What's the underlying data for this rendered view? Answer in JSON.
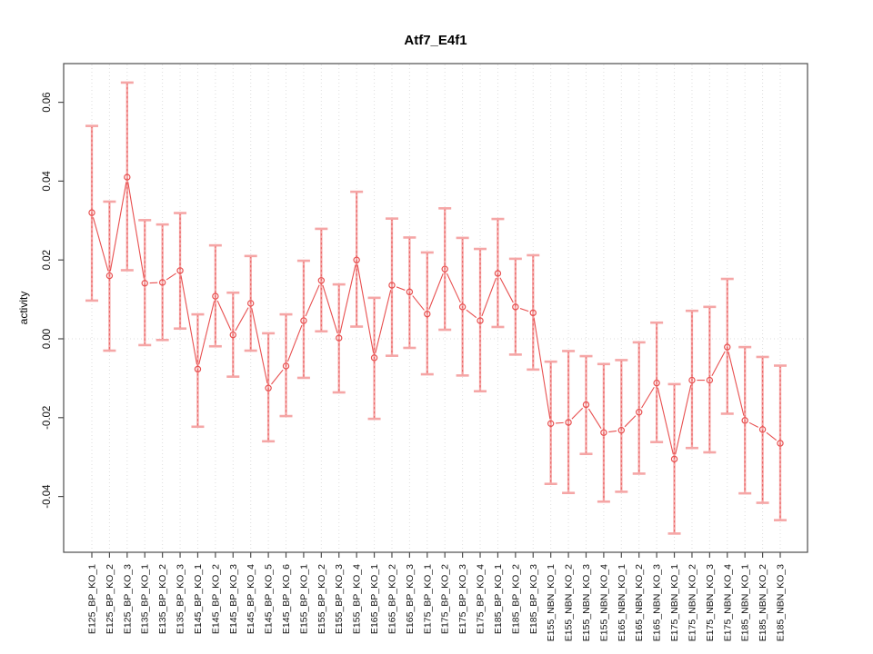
{
  "title": "Atf7_E4f1",
  "colors": {
    "series": "#e85050",
    "error_bar_light": "#f5a6a6",
    "error_bar_core": "#ea6565",
    "grid": "#dedede",
    "axis": "#4d4d4d",
    "text": "#111111"
  },
  "chart_data": {
    "type": "line",
    "subtype": "points-with-error-bars",
    "title": "Atf7_E4f1",
    "xlabel": "",
    "ylabel": "activity",
    "ylim": [
      -0.054,
      0.07
    ],
    "yticks": [
      0.06,
      0.04,
      0.02,
      0.0,
      -0.02,
      -0.04
    ],
    "yticklabels": [
      "0.06",
      "0.04",
      "0.02",
      "0.00",
      "-0.02",
      "-0.04"
    ],
    "grid": "vertical dotted gridline at every category; dotted horizontal line at y=0",
    "legend_position": "none",
    "categories": [
      "E125_BP_KO_1",
      "E125_BP_KO_2",
      "E125_BP_KO_3",
      "E135_BP_KO_1",
      "E135_BP_KO_2",
      "E135_BP_KO_3",
      "E145_BP_KO_1",
      "E145_BP_KO_2",
      "E145_BP_KO_3",
      "E145_BP_KO_4",
      "E145_BP_KO_5",
      "E145_BP_KO_6",
      "E155_BP_KO_1",
      "E155_BP_KO_2",
      "E155_BP_KO_3",
      "E155_BP_KO_4",
      "E165_BP_KO_1",
      "E165_BP_KO_2",
      "E165_BP_KO_3",
      "E175_BP_KO_1",
      "E175_BP_KO_2",
      "E175_BP_KO_3",
      "E175_BP_KO_4",
      "E185_BP_KO_1",
      "E185_BP_KO_2",
      "E185_BP_KO_3",
      "E155_NBN_KO_1",
      "E155_NBN_KO_2",
      "E155_NBN_KO_3",
      "E155_NBN_KO_4",
      "E165_NBN_KO_1",
      "E165_NBN_KO_2",
      "E165_NBN_KO_3",
      "E175_NBN_KO_1",
      "E175_NBN_KO_2",
      "E175_NBN_KO_3",
      "E175_NBN_KO_4",
      "E185_NBN_KO_1",
      "E185_NBN_KO_2",
      "E185_NBN_KO_3"
    ],
    "series": [
      {
        "name": "activity",
        "values": [
          0.032,
          0.016,
          0.041,
          0.0141,
          0.0143,
          0.0173,
          -0.0077,
          0.0108,
          0.001,
          0.009,
          -0.0125,
          -0.0069,
          0.0046,
          0.0148,
          0.0002,
          0.02,
          -0.0048,
          0.0136,
          0.0119,
          0.0063,
          0.0177,
          0.0081,
          0.0046,
          0.0166,
          0.0081,
          0.0066,
          -0.0215,
          -0.0212,
          -0.0167,
          -0.0238,
          -0.0232,
          -0.0186,
          -0.0112,
          -0.0305,
          -0.0105,
          -0.0105,
          -0.0021,
          -0.0207,
          -0.023,
          -0.0265
        ],
        "ci_low": [
          0.0097,
          -0.003,
          0.0174,
          -0.0016,
          -0.0003,
          0.0026,
          -0.0223,
          -0.0019,
          -0.0096,
          -0.003,
          -0.026,
          -0.0196,
          -0.0099,
          0.0019,
          -0.0136,
          0.0031,
          -0.0203,
          -0.0043,
          -0.0023,
          -0.009,
          0.0023,
          -0.0093,
          -0.0133,
          0.003,
          -0.004,
          -0.0078,
          -0.0368,
          -0.0391,
          -0.0292,
          -0.0413,
          -0.0388,
          -0.0342,
          -0.0262,
          -0.0494,
          -0.0277,
          -0.0288,
          -0.019,
          -0.0392,
          -0.0416,
          -0.046
        ],
        "ci_high": [
          0.054,
          0.0348,
          0.065,
          0.0301,
          0.029,
          0.0319,
          0.0062,
          0.0237,
          0.0117,
          0.021,
          0.0014,
          0.0062,
          0.0198,
          0.0279,
          0.0138,
          0.0373,
          0.0104,
          0.0305,
          0.0257,
          0.0219,
          0.0331,
          0.0256,
          0.0228,
          0.0304,
          0.0203,
          0.0212,
          -0.0058,
          -0.0031,
          -0.0044,
          -0.0064,
          -0.0054,
          -0.0009,
          0.0041,
          -0.0115,
          0.0071,
          0.0081,
          0.0152,
          -0.0021,
          -0.0046,
          -0.0068
        ]
      }
    ]
  }
}
